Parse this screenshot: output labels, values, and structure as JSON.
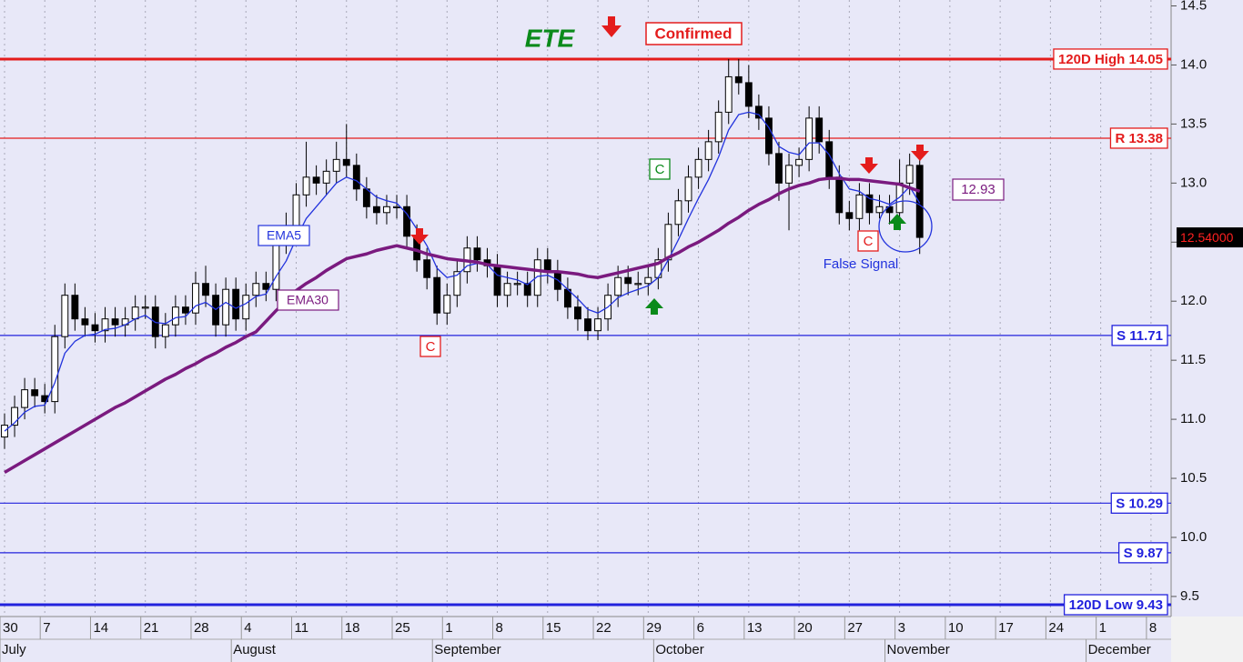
{
  "chart_data": {
    "type": "candlestick",
    "title": "ETE",
    "categories": [
      "30",
      null,
      null,
      null,
      "7",
      null,
      null,
      null,
      null,
      "14",
      null,
      null,
      null,
      null,
      "21",
      null,
      null,
      null,
      null,
      "28",
      null,
      null,
      null,
      null,
      "4",
      null,
      null,
      null,
      null,
      "11",
      null,
      null,
      null,
      null,
      "18",
      null,
      null,
      null,
      null,
      "25",
      null,
      null,
      null,
      null,
      "1",
      null,
      null,
      null,
      null,
      "8",
      null,
      null,
      null,
      null,
      "15",
      null,
      null,
      null,
      null,
      "22",
      null,
      null,
      null,
      null,
      "29",
      null,
      null,
      null,
      null,
      "6",
      null,
      null,
      null,
      null,
      "13",
      null,
      null,
      null,
      null,
      "20",
      null,
      null,
      null,
      null,
      "27",
      null,
      null,
      null,
      null,
      "3",
      null,
      null,
      null,
      null,
      "10",
      null,
      null,
      null,
      null,
      "17",
      null,
      null,
      null,
      null,
      "24",
      null,
      null,
      null,
      null,
      "1",
      null,
      null,
      null,
      null,
      "8",
      null
    ],
    "months": [
      "July",
      null,
      null,
      null,
      null,
      null,
      null,
      null,
      null,
      null,
      null,
      null,
      null,
      null,
      null,
      null,
      null,
      null,
      null,
      null,
      null,
      null,
      null,
      "August",
      null,
      null,
      null,
      null,
      null,
      null,
      null,
      null,
      null,
      null,
      null,
      null,
      null,
      null,
      null,
      null,
      null,
      null,
      null,
      "September",
      null,
      null,
      null,
      null,
      null,
      null,
      null,
      null,
      null,
      null,
      null,
      null,
      null,
      null,
      null,
      null,
      null,
      null,
      null,
      null,
      null,
      "October",
      null,
      null,
      null,
      null,
      null,
      null,
      null,
      null,
      null,
      null,
      null,
      null,
      null,
      null,
      null,
      null,
      null,
      null,
      null,
      null,
      null,
      null,
      "November",
      null,
      null,
      null,
      null,
      null,
      null,
      null,
      null,
      null,
      null,
      null,
      null,
      null,
      null,
      null,
      null,
      null,
      null,
      null,
      "December",
      null,
      null,
      null,
      null,
      null,
      null
    ],
    "open": [
      10.85,
      10.95,
      11.1,
      11.25,
      11.2,
      11.15,
      11.7,
      12.05,
      11.85,
      11.8,
      11.75,
      11.85,
      11.8,
      11.85,
      11.95,
      11.95,
      11.7,
      11.8,
      11.95,
      11.9,
      12.15,
      12.05,
      11.8,
      12.1,
      11.85,
      12.05,
      12.15,
      12.1,
      12.5,
      12.6,
      12.9,
      13.05,
      13.0,
      13.1,
      13.2,
      13.15,
      12.95,
      12.8,
      12.75,
      12.8,
      12.8,
      12.55,
      12.35,
      12.2,
      11.9,
      12.05,
      12.25,
      12.45,
      12.35,
      12.3,
      12.05,
      12.15,
      12.15,
      12.05,
      12.35,
      12.25,
      12.1,
      11.95,
      11.85,
      11.75,
      11.85,
      12.05,
      12.2,
      12.15,
      12.15,
      12.2,
      12.35,
      12.65,
      12.85,
      13.05,
      13.2,
      13.35,
      13.6,
      13.9,
      13.85,
      13.65,
      13.55,
      13.25,
      13.0,
      13.15,
      13.2,
      13.55,
      13.35,
      13.05,
      12.75,
      12.7,
      12.9,
      12.75,
      12.8,
      12.75,
      13.0,
      13.15,
      null,
      null,
      null,
      null,
      null,
      null,
      null,
      null,
      null,
      null,
      null,
      null,
      null,
      null,
      null,
      null,
      null,
      null,
      null,
      null,
      null,
      null,
      null,
      null
    ],
    "high": [
      11.05,
      11.2,
      11.35,
      11.35,
      11.3,
      11.8,
      12.15,
      12.15,
      11.95,
      11.9,
      11.95,
      11.95,
      11.95,
      12.05,
      12.05,
      12.05,
      11.9,
      12.05,
      12.05,
      12.25,
      12.3,
      12.15,
      12.2,
      12.2,
      12.15,
      12.25,
      12.25,
      12.6,
      12.75,
      13.0,
      13.35,
      13.15,
      13.2,
      13.35,
      13.5,
      13.25,
      13.05,
      12.9,
      12.9,
      12.9,
      12.9,
      12.65,
      12.45,
      12.3,
      12.15,
      12.35,
      12.55,
      12.55,
      12.45,
      12.4,
      12.25,
      12.25,
      12.25,
      12.45,
      12.45,
      12.35,
      12.2,
      12.05,
      11.95,
      11.95,
      12.15,
      12.3,
      12.3,
      12.25,
      12.3,
      12.45,
      12.75,
      12.95,
      13.15,
      13.3,
      13.45,
      13.7,
      14.05,
      14.05,
      14.0,
      13.75,
      13.65,
      13.35,
      13.25,
      13.3,
      13.65,
      13.65,
      13.45,
      13.15,
      12.85,
      13.0,
      13.0,
      12.9,
      12.9,
      13.2,
      13.25,
      13.2,
      null,
      null,
      null,
      null,
      null,
      null,
      null,
      null,
      null,
      null,
      null,
      null,
      null,
      null,
      null,
      null,
      null,
      null,
      null,
      null,
      null,
      null,
      null,
      null
    ],
    "low": [
      10.75,
      10.85,
      11.0,
      11.1,
      11.05,
      11.05,
      11.6,
      11.75,
      11.7,
      11.65,
      11.65,
      11.7,
      11.7,
      11.75,
      11.85,
      11.6,
      11.6,
      11.7,
      11.8,
      11.8,
      11.95,
      11.7,
      11.7,
      11.75,
      11.75,
      11.95,
      12.0,
      12.0,
      12.4,
      12.5,
      12.8,
      12.9,
      12.9,
      13.0,
      13.05,
      12.85,
      12.7,
      12.65,
      12.65,
      12.7,
      12.45,
      12.25,
      12.1,
      11.8,
      11.8,
      11.95,
      12.15,
      12.25,
      12.2,
      11.95,
      11.95,
      12.05,
      11.95,
      11.95,
      12.15,
      12.0,
      11.85,
      11.75,
      11.67,
      11.67,
      11.75,
      11.95,
      12.05,
      12.05,
      12.05,
      12.1,
      12.25,
      12.55,
      12.75,
      12.95,
      13.1,
      13.25,
      13.5,
      13.75,
      13.55,
      13.45,
      13.15,
      12.85,
      12.6,
      13.05,
      13.1,
      13.25,
      12.95,
      12.65,
      12.6,
      12.6,
      12.65,
      12.7,
      12.65,
      12.65,
      12.9,
      12.4,
      null,
      null,
      null,
      null,
      null,
      null,
      null,
      null,
      null,
      null,
      null,
      null,
      null,
      null,
      null,
      null,
      null,
      null,
      null,
      null,
      null,
      null,
      null,
      null
    ],
    "close": [
      10.95,
      11.1,
      11.25,
      11.2,
      11.15,
      11.7,
      12.05,
      11.85,
      11.8,
      11.75,
      11.85,
      11.8,
      11.85,
      11.95,
      11.95,
      11.7,
      11.8,
      11.95,
      11.9,
      12.15,
      12.05,
      11.8,
      12.1,
      11.85,
      12.05,
      12.15,
      12.1,
      12.5,
      12.6,
      12.9,
      13.05,
      13.0,
      13.1,
      13.2,
      13.15,
      12.95,
      12.8,
      12.75,
      12.8,
      12.8,
      12.55,
      12.35,
      12.2,
      11.9,
      12.05,
      12.25,
      12.45,
      12.35,
      12.3,
      12.05,
      12.15,
      12.15,
      12.05,
      12.35,
      12.25,
      12.1,
      11.95,
      11.85,
      11.75,
      11.85,
      12.05,
      12.2,
      12.15,
      12.15,
      12.2,
      12.35,
      12.65,
      12.85,
      13.05,
      13.2,
      13.35,
      13.6,
      13.9,
      13.85,
      13.65,
      13.55,
      13.25,
      13.0,
      13.15,
      13.2,
      13.55,
      13.35,
      13.05,
      12.75,
      12.7,
      12.9,
      12.75,
      12.8,
      12.75,
      13.0,
      13.15,
      12.54,
      null,
      null,
      null,
      null,
      null,
      null,
      null,
      null,
      null,
      null,
      null,
      null,
      null,
      null,
      null,
      null,
      null,
      null,
      null,
      null,
      null,
      null,
      null,
      null
    ],
    "up_color": "#ffffff",
    "down_color": "#000000",
    "series": [
      {
        "name": "EMA5",
        "color": "#2233dd",
        "width": 1.3,
        "values": [
          10.9,
          10.97,
          11.06,
          11.11,
          11.12,
          11.31,
          11.56,
          11.66,
          11.71,
          11.72,
          11.76,
          11.77,
          11.8,
          11.85,
          11.88,
          11.82,
          11.81,
          11.86,
          11.87,
          11.96,
          11.99,
          11.93,
          11.99,
          11.94,
          11.98,
          12.04,
          12.06,
          12.21,
          12.34,
          12.53,
          12.7,
          12.8,
          12.9,
          13.0,
          13.05,
          13.02,
          12.95,
          12.88,
          12.85,
          12.83,
          12.74,
          12.61,
          12.47,
          12.28,
          12.2,
          12.22,
          12.3,
          12.32,
          12.31,
          12.22,
          12.2,
          12.18,
          12.14,
          12.21,
          12.22,
          12.18,
          12.1,
          12.02,
          11.93,
          11.9,
          11.95,
          12.03,
          12.07,
          12.1,
          12.13,
          12.2,
          12.35,
          12.52,
          12.7,
          12.87,
          13.03,
          13.22,
          13.45,
          13.58,
          13.6,
          13.58,
          13.47,
          13.31,
          13.26,
          13.24,
          13.34,
          13.34,
          13.24,
          13.08,
          12.95,
          12.93,
          12.87,
          12.85,
          12.82,
          12.88,
          12.97,
          12.83,
          null,
          null,
          null,
          null,
          null,
          null,
          null,
          null,
          null,
          null,
          null,
          null,
          null,
          null,
          null,
          null,
          null,
          null,
          null,
          null,
          null,
          null,
          null,
          null
        ]
      },
      {
        "name": "EMA30",
        "color": "#7a1a7f",
        "width": 3.5,
        "values": [
          10.55,
          10.6,
          10.65,
          10.7,
          10.75,
          10.8,
          10.85,
          10.9,
          10.95,
          11.0,
          11.05,
          11.1,
          11.14,
          11.19,
          11.24,
          11.29,
          11.34,
          11.38,
          11.43,
          11.47,
          11.52,
          11.56,
          11.61,
          11.65,
          11.7,
          11.74,
          11.83,
          11.92,
          12.0,
          12.09,
          12.15,
          12.2,
          12.26,
          12.31,
          12.36,
          12.38,
          12.4,
          12.43,
          12.45,
          12.47,
          12.45,
          12.43,
          12.4,
          12.38,
          12.36,
          12.35,
          12.34,
          12.33,
          12.31,
          12.3,
          12.29,
          12.28,
          12.27,
          12.26,
          12.25,
          12.25,
          12.24,
          12.23,
          12.21,
          12.2,
          12.22,
          12.24,
          12.26,
          12.28,
          12.3,
          12.32,
          12.37,
          12.41,
          12.46,
          12.5,
          12.55,
          12.6,
          12.66,
          12.71,
          12.77,
          12.82,
          12.86,
          12.91,
          12.95,
          12.98,
          13.0,
          13.03,
          13.04,
          13.04,
          13.03,
          13.03,
          13.02,
          13.01,
          13.0,
          12.99,
          12.96,
          12.93,
          null,
          null,
          null,
          null,
          null,
          null,
          null,
          null,
          null,
          null,
          null,
          null,
          null,
          null,
          null,
          null,
          null,
          null,
          null,
          null,
          null,
          null,
          null,
          null
        ]
      }
    ],
    "levels": [
      {
        "label": "120D High 14.05",
        "value": 14.05,
        "color": "#e41c1c",
        "width": 3
      },
      {
        "label": "R 13.38",
        "value": 13.38,
        "color": "#e41c1c",
        "width": 1.2
      },
      {
        "label": "S 11.71",
        "value": 11.71,
        "color": "#2222dd",
        "width": 1.2
      },
      {
        "label": "S 10.29",
        "value": 10.29,
        "color": "#2222dd",
        "width": 1.2
      },
      {
        "label": "S 9.87",
        "value": 9.87,
        "color": "#2222dd",
        "width": 1.2
      },
      {
        "label": "120D Low 9.43",
        "value": 9.43,
        "color": "#2222dd",
        "width": 3
      }
    ],
    "last_price": {
      "value": 12.54,
      "label": "12.54000"
    },
    "ema30_value": 12.93,
    "annotations": {
      "confirmed": "Confirmed",
      "c_marks": [
        "C",
        "C",
        "C"
      ],
      "false_signal": "False Signal"
    },
    "ylim": [
      9.33,
      14.55
    ],
    "yticks": [
      9.5,
      {
        "value": 10,
        "label": "10.0"
      },
      10.5,
      {
        "value": 11,
        "label": "11.0"
      },
      11.5,
      {
        "value": 12,
        "label": "12.0"
      },
      12.5,
      {
        "value": 13,
        "label": "13.0"
      },
      13.5,
      {
        "value": 14,
        "label": "14.0"
      },
      14.5
    ],
    "grid": true
  }
}
